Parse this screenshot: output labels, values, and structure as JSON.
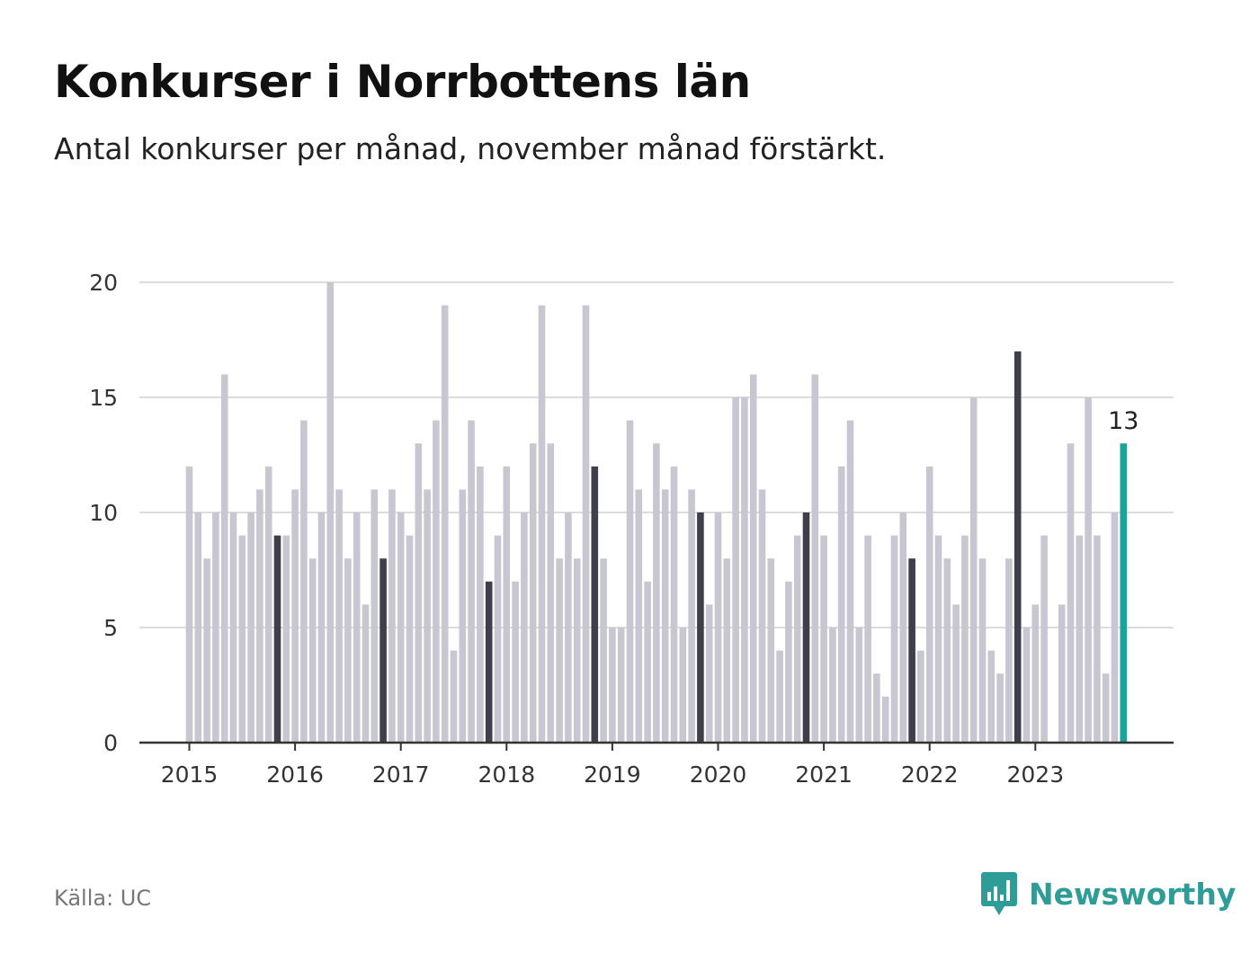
{
  "header": {
    "title": "Konkurser i Norrbottens län",
    "subtitle": "Antal konkurser per månad, november månad förstärkt."
  },
  "footer": {
    "source": "Källa: UC",
    "brand": "Newsworthy"
  },
  "colors": {
    "bar": "#c8c7d1",
    "highlight": "#3f3e4b",
    "latest": "#1aa39b",
    "grid": "#dcdcdc",
    "axis": "#333333",
    "brand": "#2e9c97"
  },
  "icons": {
    "brand_logo": "bar-chart-speech-bubble-icon"
  },
  "chart_data": {
    "type": "bar",
    "title": "Konkurser i Norrbottens län",
    "subtitle": "Antal konkurser per månad, november månad förstärkt.",
    "start": "2015-01",
    "frequency": "monthly",
    "x_tick_labels": [
      "2015",
      "2016",
      "2017",
      "2018",
      "2019",
      "2020",
      "2021",
      "2022",
      "2023"
    ],
    "y_ticks": [
      0,
      5,
      10,
      15,
      20
    ],
    "ylim": [
      0,
      20
    ],
    "grid": true,
    "highlight_month": "november",
    "values": [
      12,
      10,
      8,
      10,
      16,
      10,
      9,
      10,
      11,
      12,
      9,
      9,
      11,
      14,
      8,
      10,
      20,
      11,
      8,
      10,
      6,
      11,
      8,
      11,
      10,
      9,
      13,
      11,
      14,
      19,
      4,
      11,
      14,
      12,
      7,
      9,
      12,
      7,
      10,
      13,
      19,
      13,
      8,
      10,
      8,
      19,
      12,
      8,
      5,
      5,
      14,
      11,
      7,
      13,
      11,
      12,
      5,
      11,
      10,
      6,
      10,
      8,
      15,
      15,
      16,
      11,
      8,
      4,
      7,
      9,
      10,
      16,
      9,
      5,
      12,
      14,
      5,
      9,
      3,
      2,
      9,
      10,
      8,
      4,
      12,
      9,
      8,
      6,
      9,
      15,
      8,
      4,
      3,
      8,
      17,
      5,
      6,
      9,
      0,
      6,
      13,
      9,
      15,
      9,
      3,
      10,
      13
    ],
    "annotation": {
      "label": "13",
      "month": "2023-11"
    }
  }
}
